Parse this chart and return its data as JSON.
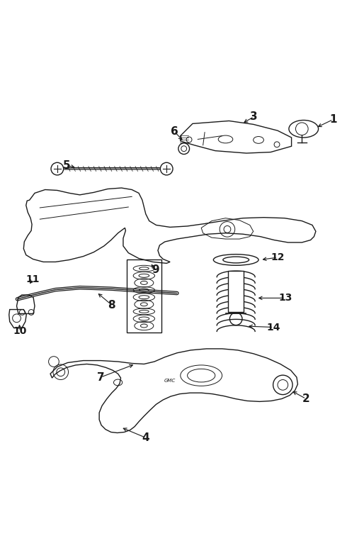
{
  "bg_color": "#ffffff",
  "line_color": "#1a1a1a",
  "figure_width": 4.9,
  "figure_height": 7.8,
  "dpi": 100
}
